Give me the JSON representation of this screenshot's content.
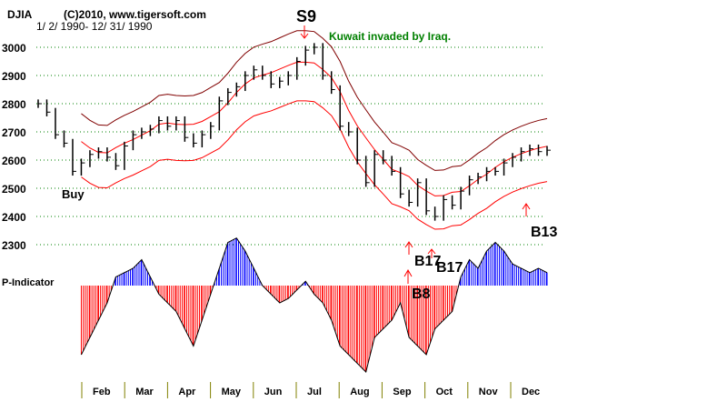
{
  "chart_data": {
    "type": "ohlc-with-indicator",
    "title": "DJIA",
    "copyright": "(C)2010, www.tigersoft.com",
    "date_range": "1/ 2/ 1990- 12/ 31/ 1990",
    "ylim": [
      2300,
      3000
    ],
    "yticks": [
      "3000",
      "2900",
      "2800",
      "2700",
      "2600",
      "2500",
      "2400",
      "2300"
    ],
    "ytick_values": [
      3000,
      2900,
      2800,
      2700,
      2600,
      2500,
      2400,
      2300
    ],
    "months": [
      "Feb",
      "Mar",
      "Apr",
      "May",
      "Jun",
      "Jul",
      "Aug",
      "Sep",
      "Oct",
      "Nov",
      "Dec"
    ],
    "weekly_close": [
      2800,
      2770,
      2690,
      2660,
      2560,
      2590,
      2620,
      2630,
      2610,
      2580,
      2650,
      2690,
      2700,
      2710,
      2740,
      2720,
      2740,
      2680,
      2660,
      2690,
      2720,
      2810,
      2840,
      2860,
      2900,
      2920,
      2900,
      2870,
      2880,
      2900,
      2950,
      2990,
      3000,
      2900,
      2850,
      2720,
      2700,
      2600,
      2520,
      2620,
      2600,
      2560,
      2480,
      2450,
      2520,
      2420,
      2400,
      2460,
      2440,
      2490,
      2530,
      2540,
      2560,
      2560,
      2590,
      2610,
      2630,
      2640,
      2630,
      2635
    ],
    "indicator_label": "P-Indicator",
    "indicator_values": [
      -80,
      -60,
      -40,
      -20,
      10,
      15,
      20,
      30,
      10,
      -10,
      -20,
      -30,
      -50,
      -70,
      -40,
      -10,
      20,
      50,
      55,
      40,
      20,
      0,
      -10,
      -20,
      -15,
      -5,
      5,
      -10,
      -20,
      -40,
      -70,
      -80,
      -90,
      -100,
      -60,
      -50,
      -40,
      -20,
      -60,
      -70,
      -80,
      -50,
      -40,
      -30,
      10,
      30,
      20,
      40,
      50,
      40,
      25,
      20,
      15,
      20,
      15
    ],
    "annotations": {
      "buy": "Buy",
      "s9": "S9",
      "kuwait": "Kuwait invaded by Iraq.",
      "b8": "B8",
      "b17a": "B17",
      "b17b": "B17",
      "b13": "B13"
    },
    "colors": {
      "grid": "#008000",
      "band_upper": "#800000",
      "band": "#ff0000",
      "pos": "#0000ff",
      "neg": "#ff0000",
      "note": "#008000",
      "tick": "#808000"
    }
  }
}
